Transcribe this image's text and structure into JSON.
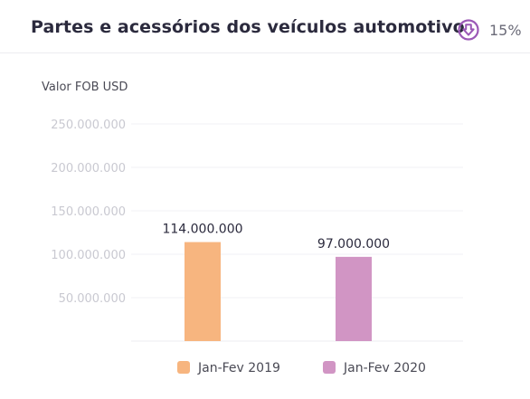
{
  "card": {
    "title": "Partes e acessórios dos veículos automotivo",
    "change": {
      "direction": "down",
      "icon": "arrow-down-circle-icon",
      "value": "15%",
      "color": "#9b59b6"
    }
  },
  "chart_data": {
    "type": "bar",
    "ylabel": "Valor FOB USD",
    "xlabel": "",
    "categories": [
      "Jan-Fev 2019",
      "Jan-Fev 2020"
    ],
    "values": [
      114000000,
      97000000
    ],
    "value_labels": [
      "114.000.000",
      "97.000.000"
    ],
    "colors": [
      "#f7b57f",
      "#d195c4"
    ],
    "ylim": [
      0,
      250000000
    ],
    "yticks": [
      50000000,
      100000000,
      150000000,
      200000000,
      250000000
    ],
    "ytick_labels": [
      "50.000.000",
      "100.000.000",
      "150.000.000",
      "200.000.000",
      "250.000.000"
    ],
    "grid": true,
    "legend": {
      "position": "bottom",
      "entries": [
        "Jan-Fev 2019",
        "Jan-Fev 2020"
      ]
    }
  }
}
